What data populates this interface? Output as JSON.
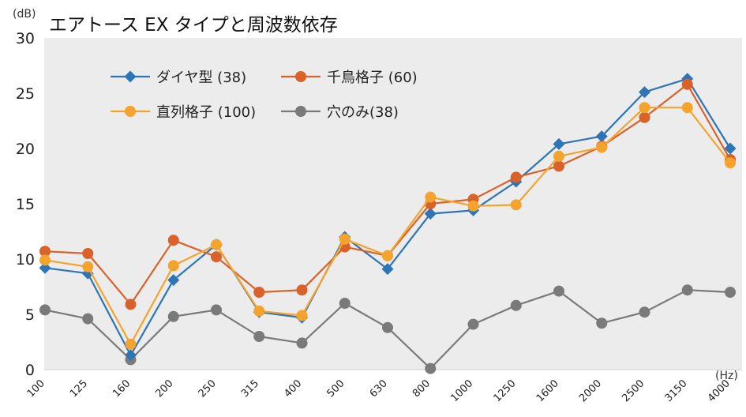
{
  "chart_data": {
    "type": "line",
    "title": "エアトース EX タイプと周波数依存",
    "y_unit": "(dB)",
    "x_unit": "(Hz)",
    "ylim": [
      0,
      30
    ],
    "y_ticks": [
      "0",
      "5",
      "10",
      "15",
      "20",
      "25",
      "30"
    ],
    "grid": false,
    "legend_position": "top-left",
    "categories": [
      "100",
      "125",
      "160",
      "200",
      "250",
      "315",
      "400",
      "500",
      "630",
      "800",
      "1000",
      "1250",
      "1600",
      "2000",
      "2500",
      "3150",
      "4000"
    ],
    "series": [
      {
        "name": "ダイヤ型 (38)",
        "color": "#2e75b6",
        "marker": "diamond",
        "values": [
          9.2,
          8.7,
          1.3,
          8.1,
          11.3,
          5.2,
          4.7,
          12.0,
          9.1,
          14.1,
          14.4,
          17.0,
          20.4,
          21.1,
          25.1,
          26.3,
          20.0
        ]
      },
      {
        "name": "千鳥格子 (60)",
        "color": "#d9622b",
        "marker": "circle",
        "values": [
          10.7,
          10.5,
          5.9,
          11.7,
          10.2,
          7.0,
          7.2,
          11.1,
          10.3,
          15.0,
          15.4,
          17.4,
          18.4,
          20.2,
          22.8,
          25.8,
          19.0
        ]
      },
      {
        "name": "直列格子 (100)",
        "color": "#f4a42c",
        "marker": "circle",
        "values": [
          9.9,
          9.3,
          2.3,
          9.4,
          11.3,
          5.3,
          4.9,
          11.8,
          10.3,
          15.6,
          14.8,
          14.9,
          19.3,
          20.1,
          23.7,
          23.7,
          18.7
        ]
      },
      {
        "name": "穴のみ(38)",
        "color": "#7a7a7a",
        "marker": "circle",
        "values": [
          5.4,
          4.6,
          0.9,
          4.8,
          5.4,
          3.0,
          2.4,
          6.0,
          3.8,
          0.1,
          4.1,
          5.8,
          7.1,
          4.2,
          5.2,
          7.2,
          7.0
        ]
      }
    ]
  }
}
